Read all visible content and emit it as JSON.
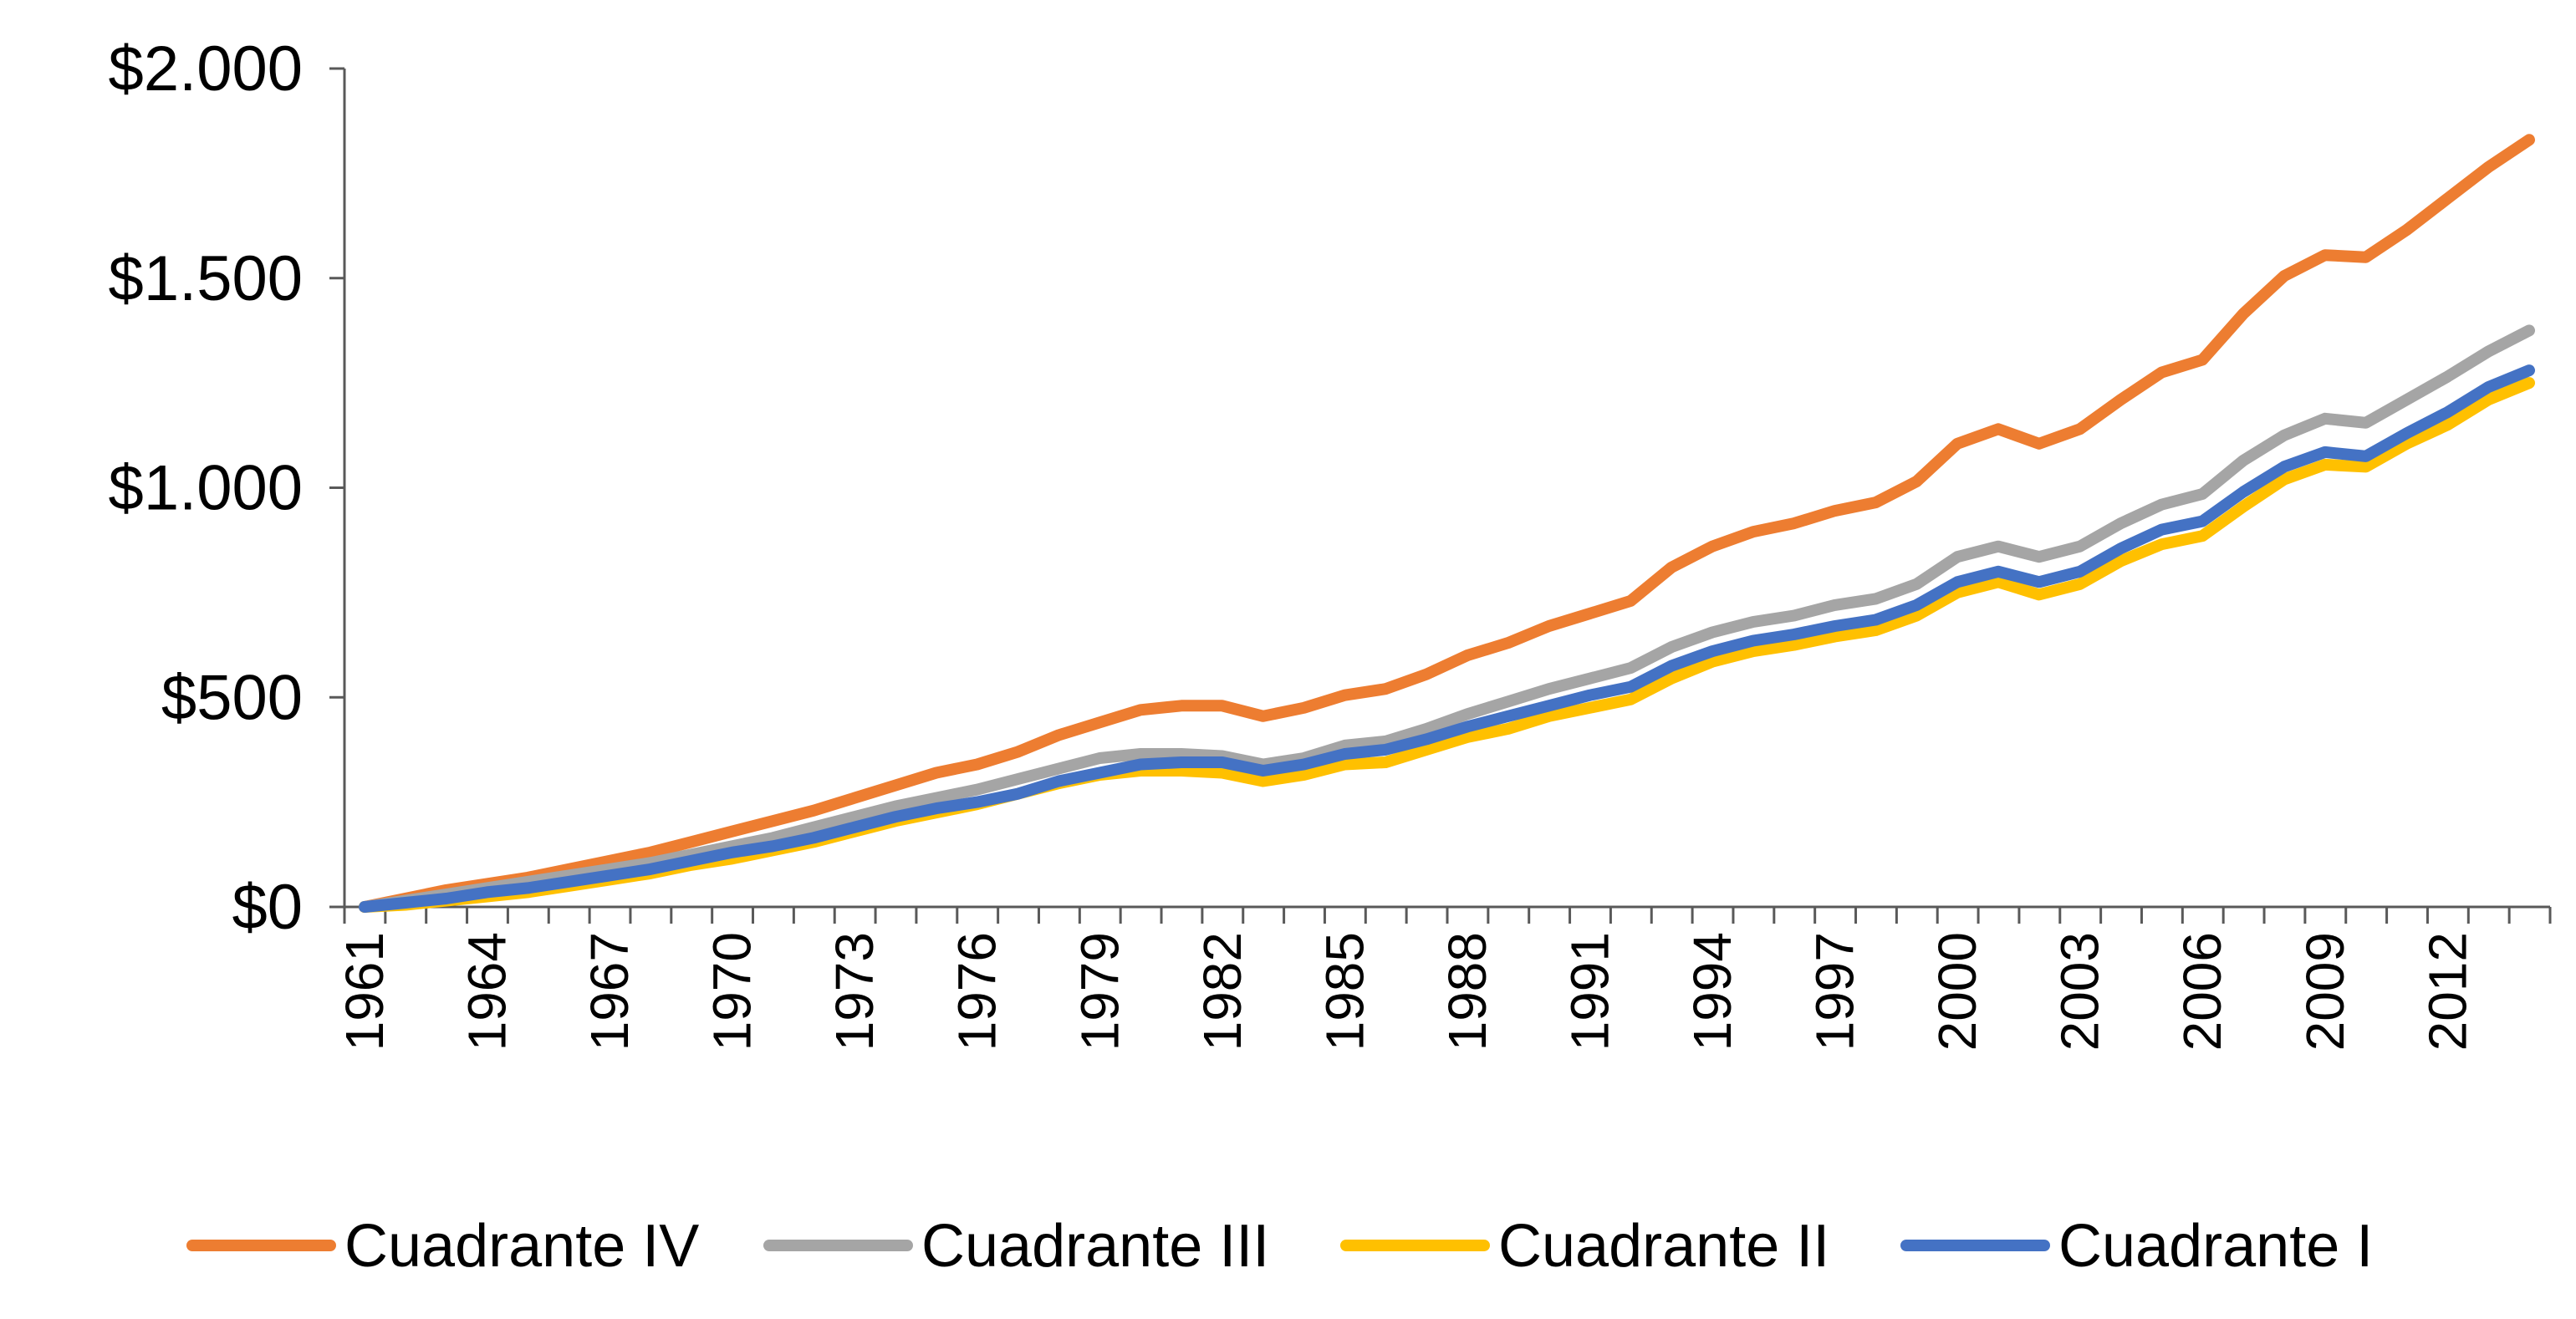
{
  "chart_data": {
    "type": "line",
    "title": "",
    "xlabel": "",
    "ylabel": "",
    "ylim": [
      0,
      2000
    ],
    "yticks": [
      0,
      500,
      1000,
      1500,
      2000
    ],
    "ytick_labels": [
      "$0",
      "$500",
      "$1.000",
      "$1.500",
      "$2.000"
    ],
    "x_first": 1961,
    "x_last": 2014,
    "xtick_labels": [
      "1961",
      "1964",
      "1967",
      "1970",
      "1973",
      "1976",
      "1979",
      "1982",
      "1985",
      "1988",
      "1991",
      "1994",
      "1997",
      "2000",
      "2003",
      "2006",
      "2009",
      "2012"
    ],
    "grid": false,
    "legend_position": "bottom",
    "x": [
      1961,
      1962,
      1963,
      1964,
      1965,
      1966,
      1967,
      1968,
      1969,
      1970,
      1971,
      1972,
      1973,
      1974,
      1975,
      1976,
      1977,
      1978,
      1979,
      1980,
      1981,
      1982,
      1983,
      1984,
      1985,
      1986,
      1987,
      1988,
      1989,
      1990,
      1991,
      1992,
      1993,
      1994,
      1995,
      1996,
      1997,
      1998,
      1999,
      2000,
      2001,
      2002,
      2003,
      2004,
      2005,
      2006,
      2007,
      2008,
      2009,
      2010,
      2011,
      2012,
      2013,
      2014
    ],
    "series": [
      {
        "name": "Cuadrante IV",
        "color": "#ED7D31",
        "values": [
          0,
          20,
          40,
          55,
          70,
          90,
          110,
          130,
          155,
          180,
          205,
          230,
          260,
          290,
          320,
          340,
          370,
          410,
          440,
          470,
          480,
          480,
          455,
          475,
          505,
          520,
          555,
          600,
          630,
          670,
          700,
          730,
          810,
          860,
          895,
          915,
          945,
          965,
          1015,
          1105,
          1140,
          1105,
          1140,
          1210,
          1275,
          1305,
          1415,
          1505,
          1555,
          1550,
          1615,
          1690,
          1765,
          1830
        ]
      },
      {
        "name": "Cuadrante III",
        "color": "#A5A5A5",
        "values": [
          0,
          15,
          30,
          45,
          60,
          75,
          90,
          105,
          125,
          145,
          165,
          190,
          215,
          240,
          260,
          280,
          305,
          330,
          355,
          365,
          365,
          360,
          340,
          355,
          385,
          395,
          425,
          460,
          490,
          520,
          545,
          570,
          620,
          655,
          680,
          695,
          720,
          735,
          770,
          835,
          860,
          835,
          860,
          915,
          960,
          985,
          1065,
          1125,
          1165,
          1155,
          1210,
          1265,
          1325,
          1375
        ]
      },
      {
        "name": "Cuadrante II",
        "color": "#FFC000",
        "values": [
          0,
          5,
          15,
          25,
          35,
          50,
          65,
          80,
          100,
          115,
          135,
          155,
          180,
          205,
          225,
          245,
          270,
          295,
          315,
          325,
          325,
          320,
          300,
          315,
          340,
          345,
          375,
          405,
          425,
          455,
          475,
          495,
          545,
          585,
          610,
          625,
          645,
          660,
          695,
          750,
          775,
          745,
          770,
          825,
          865,
          885,
          955,
          1020,
          1055,
          1050,
          1105,
          1150,
          1210,
          1250
        ]
      },
      {
        "name": "Cuadrante I",
        "color": "#4472C4",
        "values": [
          0,
          10,
          20,
          35,
          45,
          60,
          75,
          90,
          110,
          130,
          145,
          165,
          190,
          215,
          235,
          250,
          270,
          300,
          320,
          340,
          345,
          345,
          325,
          340,
          365,
          375,
          400,
          430,
          455,
          480,
          505,
          525,
          575,
          610,
          635,
          650,
          670,
          685,
          720,
          775,
          800,
          775,
          800,
          855,
          900,
          920,
          990,
          1050,
          1085,
          1075,
          1130,
          1180,
          1240,
          1280
        ]
      }
    ]
  }
}
